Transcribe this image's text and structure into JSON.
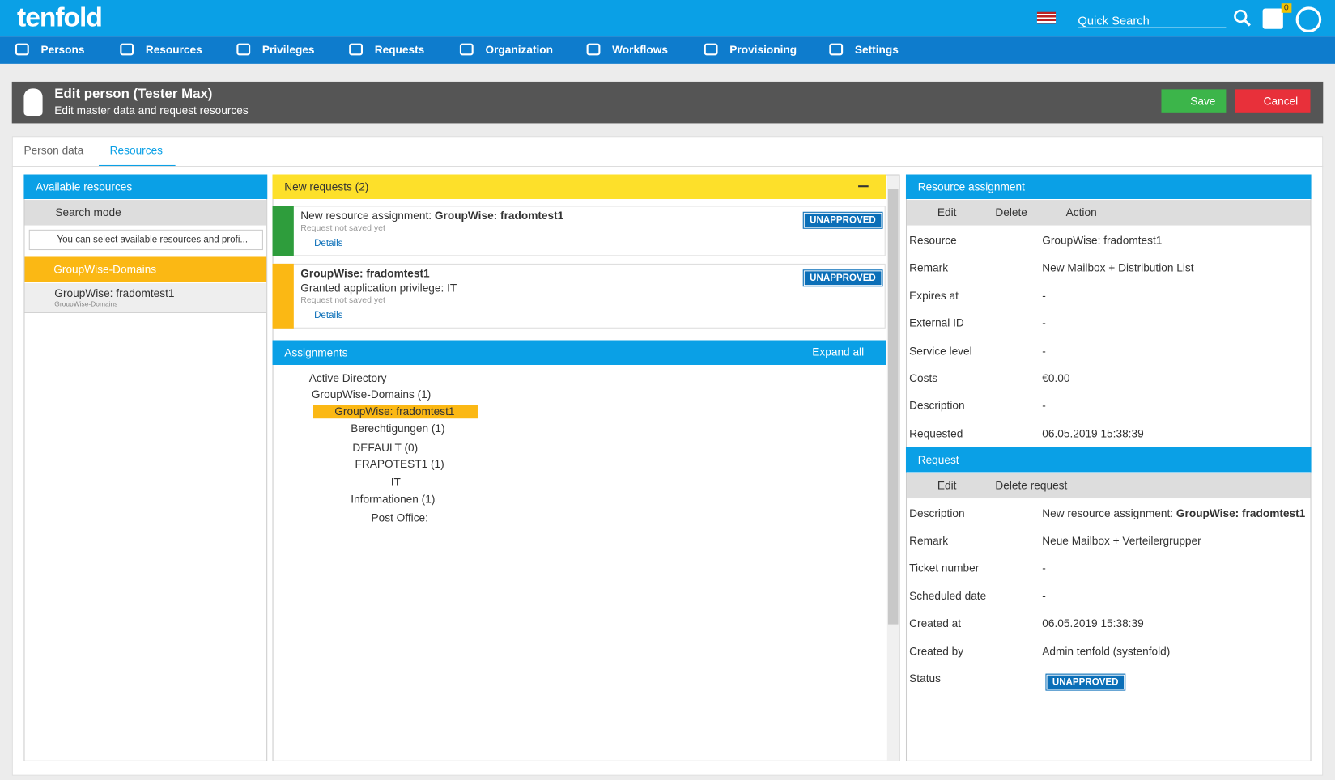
{
  "header": {
    "brand": "tenfold",
    "quick_search": "Quick Search",
    "badge": "0"
  },
  "nav": [
    "Persons",
    "Resources",
    "Privileges",
    "Requests",
    "Organization",
    "Workflows",
    "Provisioning",
    "Settings"
  ],
  "page_header": {
    "title": "Edit person (Tester Max)",
    "subtitle": "Edit master data and request resources",
    "save": "Save",
    "cancel": "Cancel"
  },
  "tabs": [
    "Person data",
    "Resources"
  ],
  "available": {
    "title": "Available resources",
    "search": "Search mode",
    "info": "You can select available resources and profi...",
    "group": "GroupWise-Domains",
    "item": "GroupWise: fradomtest1",
    "item_sub": "GroupWise-Domains"
  },
  "new_requests": {
    "title": "New requests (2)",
    "items": [
      {
        "prefix": "New resource assignment: ",
        "name": "GroupWise: fradomtest1",
        "note": "Request not saved yet",
        "details": "Details",
        "status": "UNAPPROVED"
      },
      {
        "name": "GroupWise: fradomtest1",
        "line": "Granted application privilege: IT",
        "note": "Request not saved yet",
        "details": "Details",
        "status": "UNAPPROVED"
      }
    ]
  },
  "assignments": {
    "title": "Assignments",
    "expand": "Expand all",
    "tree": [
      "Active Directory",
      "GroupWise-Domains (1)",
      "GroupWise: fradomtest1",
      "Berechtigungen (1)",
      "DEFAULT (0)",
      "FRAPOTEST1 (1)",
      "IT",
      "Informationen (1)",
      "Post Office:"
    ]
  },
  "resource_assignment": {
    "title": "Resource assignment",
    "actions": [
      "Edit",
      "Delete",
      "Action"
    ],
    "fields": [
      [
        "Resource",
        "GroupWise: fradomtest1"
      ],
      [
        "Remark",
        "New Mailbox + Distribution List"
      ],
      [
        "Expires at",
        "-"
      ],
      [
        "External ID",
        "-"
      ],
      [
        "Service level",
        "-"
      ],
      [
        "Costs",
        "€0.00"
      ],
      [
        "Description",
        "-"
      ],
      [
        "Requested",
        "06.05.2019 15:38:39"
      ]
    ]
  },
  "request": {
    "title": "Request",
    "actions": [
      "Edit",
      "Delete request"
    ],
    "description_label": "Description",
    "description_prefix": "New resource assignment: ",
    "description_name": "GroupWise: fradomtest1",
    "fields": [
      [
        "Remark",
        "Neue Mailbox + Verteilergrupper"
      ],
      [
        "Ticket number",
        "-"
      ],
      [
        "Scheduled date",
        "-"
      ],
      [
        "Created at",
        "06.05.2019 15:38:39"
      ],
      [
        "Created by",
        "Admin tenfold (systenfold)"
      ]
    ],
    "status_label": "Status",
    "status": "UNAPPROVED"
  }
}
